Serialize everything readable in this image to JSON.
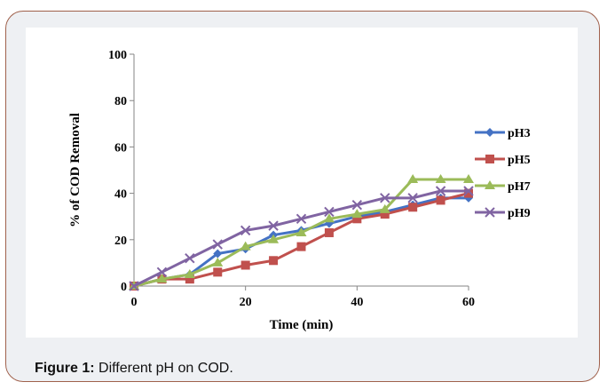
{
  "caption": {
    "label": "Figure 1:",
    "text": " Different pH on COD."
  },
  "colors": {
    "pH3": "#4472c4",
    "pH5": "#c0504d",
    "pH7": "#9bbb59",
    "pH9": "#8064a2"
  },
  "chart_data": {
    "type": "line",
    "title": "",
    "xlabel": "Time (min)",
    "ylabel": "% of COD Removal",
    "xlim": [
      0,
      60
    ],
    "ylim": [
      0,
      100
    ],
    "xticks": [
      0,
      20,
      40,
      60
    ],
    "yticks": [
      0,
      20,
      40,
      60,
      80,
      100
    ],
    "grid": false,
    "legend_position": "right",
    "x": [
      0,
      5,
      10,
      15,
      20,
      25,
      30,
      35,
      40,
      45,
      50,
      55,
      60
    ],
    "series": [
      {
        "name": "pH3",
        "marker": "diamond",
        "values": [
          0,
          3,
          5,
          14,
          16,
          22,
          24,
          27,
          30,
          32,
          35,
          38,
          38
        ]
      },
      {
        "name": "pH5",
        "marker": "square",
        "values": [
          0,
          3,
          3,
          6,
          9,
          11,
          17,
          23,
          29,
          31,
          34,
          37,
          40
        ]
      },
      {
        "name": "pH7",
        "marker": "triangle",
        "values": [
          0,
          3,
          5,
          10,
          17,
          20,
          23,
          29,
          31,
          33,
          46,
          46,
          46
        ]
      },
      {
        "name": "pH9",
        "marker": "x",
        "values": [
          0,
          6,
          12,
          18,
          24,
          26,
          29,
          32,
          35,
          38,
          38,
          41,
          41
        ]
      }
    ]
  }
}
